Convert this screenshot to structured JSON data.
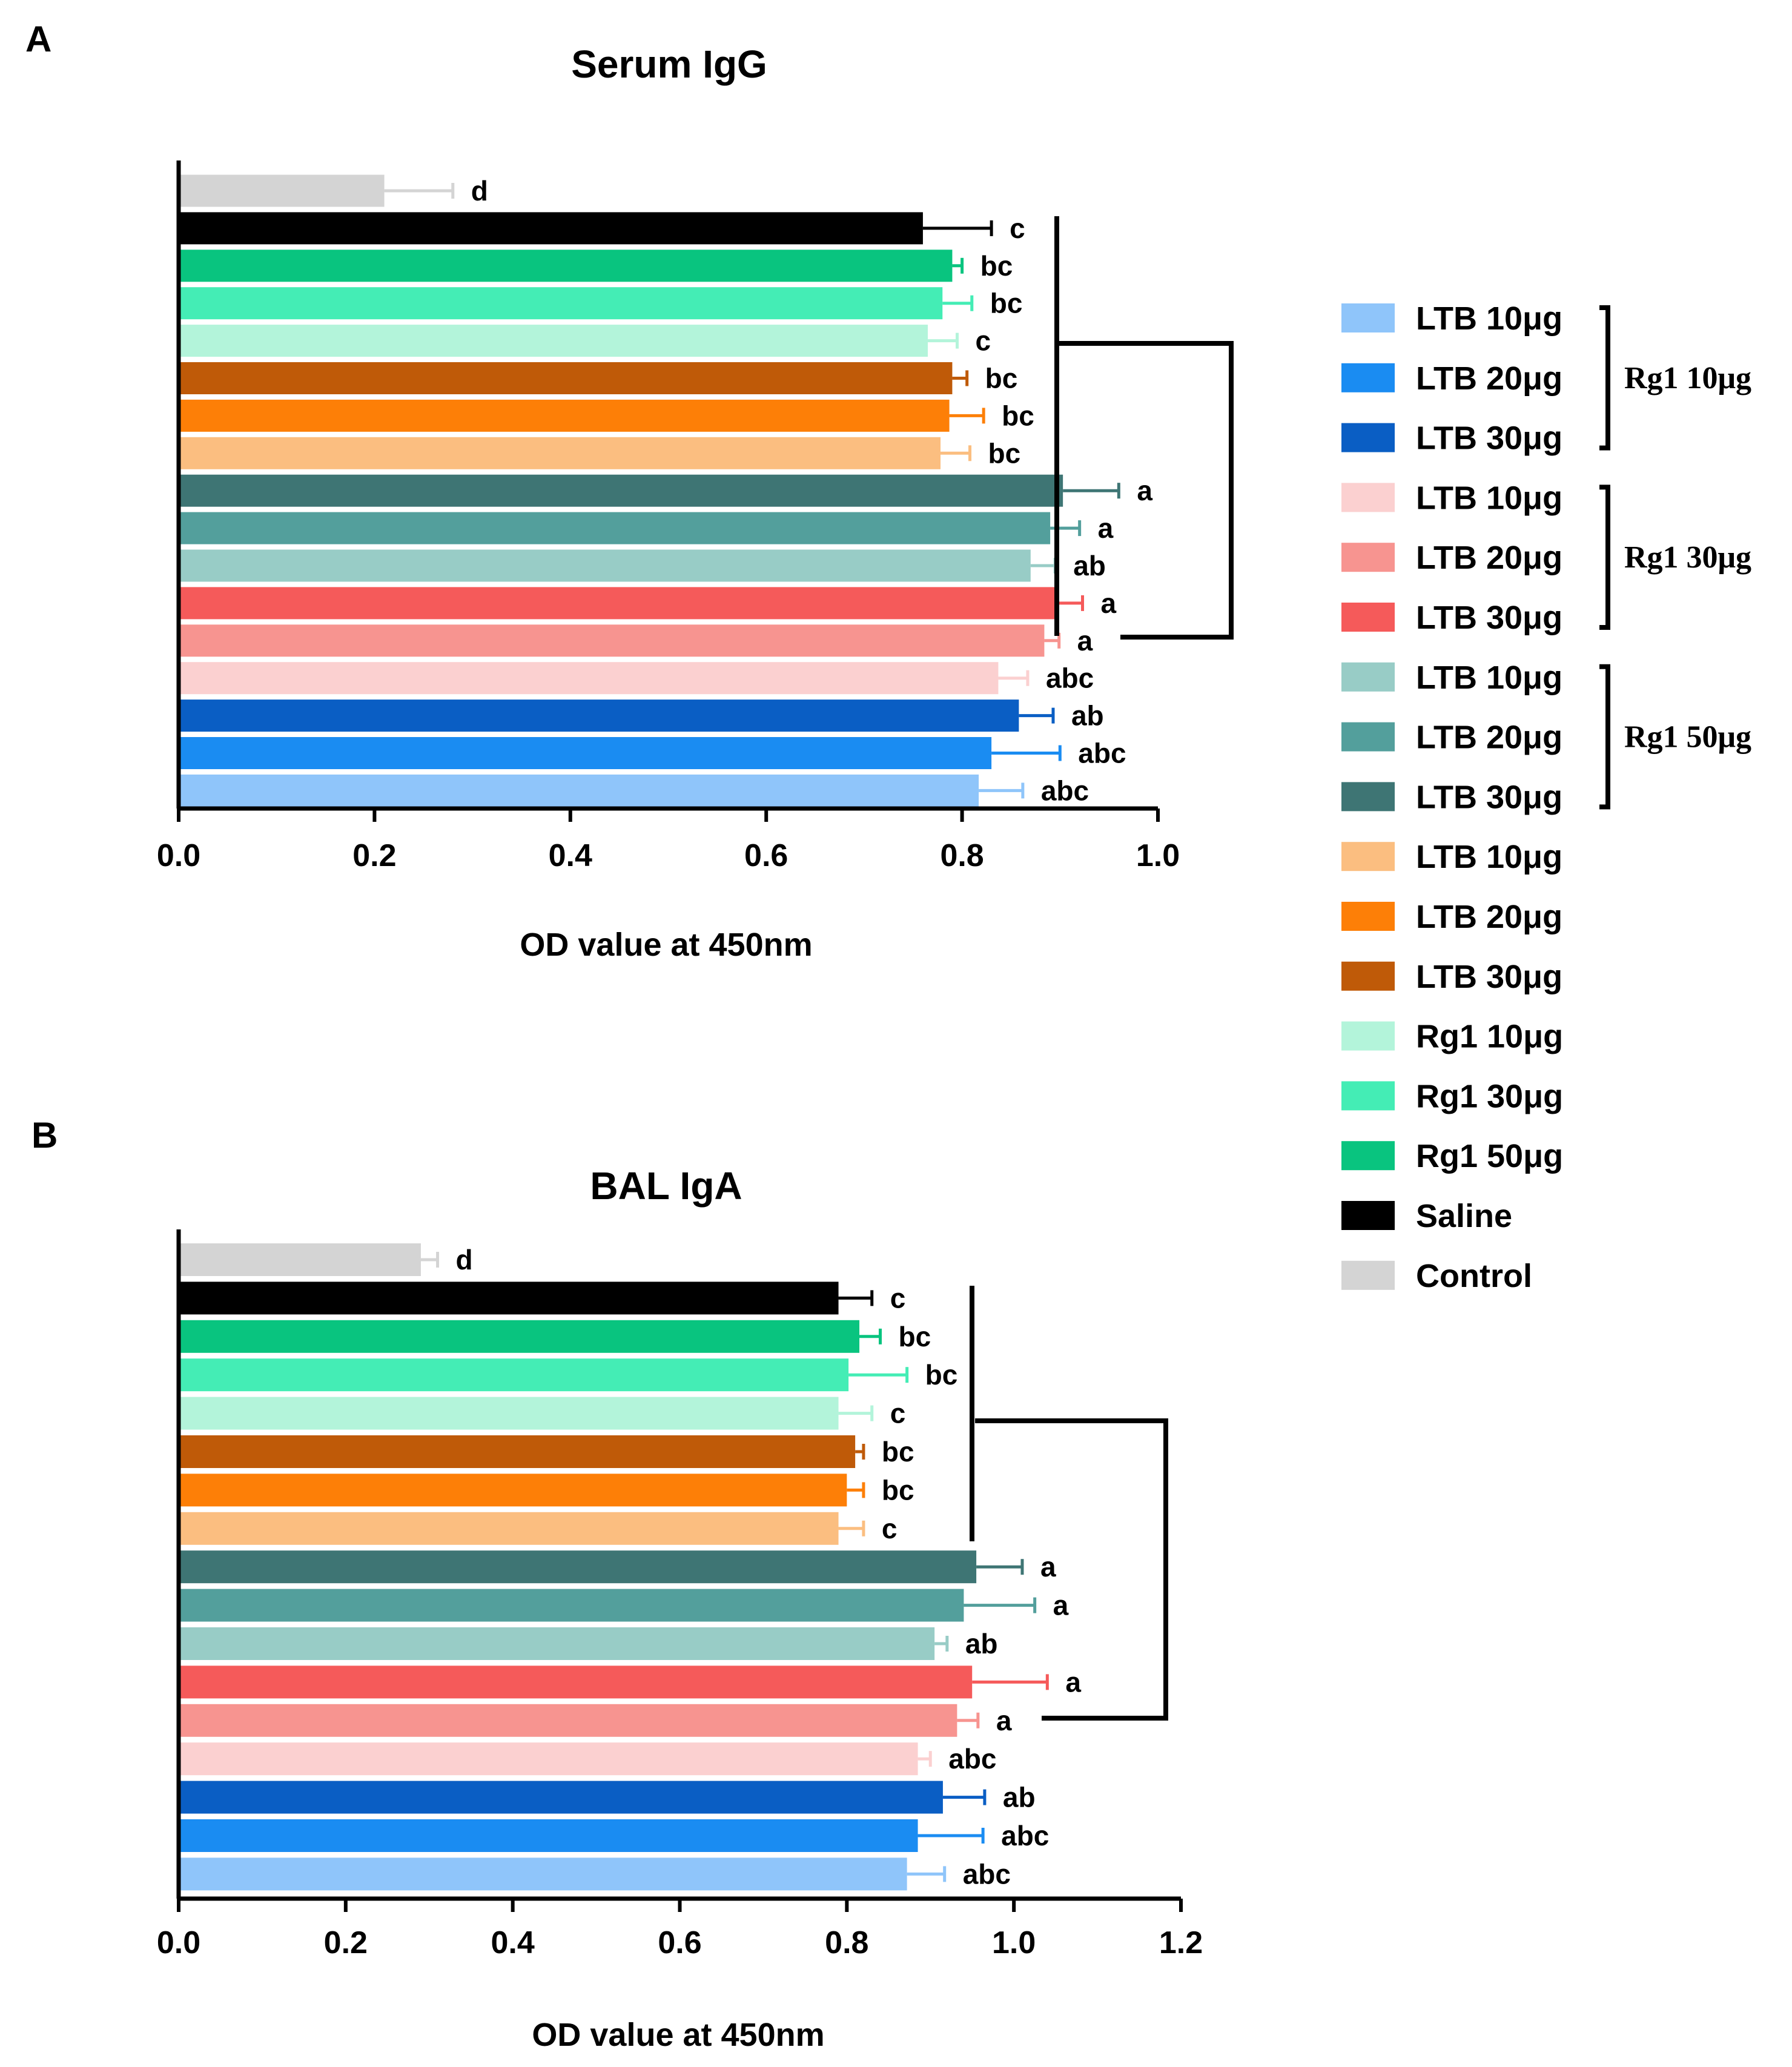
{
  "colors": {
    "ltb10_rg1_10": "#8FC5FA",
    "ltb20_rg1_10": "#1A8CF2",
    "ltb30_rg1_10": "#0A5EC4",
    "ltb10_rg1_30": "#FBD0D0",
    "ltb20_rg1_30": "#F79490",
    "ltb30_rg1_30": "#F55A5A",
    "ltb10_rg1_50": "#98CCC6",
    "ltb20_rg1_50": "#539F9C",
    "ltb30_rg1_50": "#3E7574",
    "ltb10": "#FBBE80",
    "ltb20": "#FD7F07",
    "ltb30": "#BF5A08",
    "rg1_10": "#B3F4DA",
    "rg1_30": "#44EDB5",
    "rg1_50": "#09C47F",
    "saline": "#000000",
    "control": "#D4D4D4"
  },
  "legend": {
    "items": [
      {
        "label": "LTB 10μg",
        "color_key": "ltb10_rg1_10"
      },
      {
        "label": "LTB 20μg",
        "color_key": "ltb20_rg1_10"
      },
      {
        "label": "LTB 30μg",
        "color_key": "ltb30_rg1_10"
      },
      {
        "label": "LTB 10μg",
        "color_key": "ltb10_rg1_30"
      },
      {
        "label": "LTB 20μg",
        "color_key": "ltb20_rg1_30"
      },
      {
        "label": "LTB 30μg",
        "color_key": "ltb30_rg1_30"
      },
      {
        "label": "LTB 10μg",
        "color_key": "ltb10_rg1_50"
      },
      {
        "label": "LTB 20μg",
        "color_key": "ltb20_rg1_50"
      },
      {
        "label": "LTB 30μg",
        "color_key": "ltb30_rg1_50"
      },
      {
        "label": "LTB 10μg",
        "color_key": "ltb10"
      },
      {
        "label": "LTB 20μg",
        "color_key": "ltb20"
      },
      {
        "label": "LTB 30μg",
        "color_key": "ltb30"
      },
      {
        "label": "Rg1 10μg",
        "color_key": "rg1_10"
      },
      {
        "label": "Rg1 30μg",
        "color_key": "rg1_30"
      },
      {
        "label": "Rg1 50μg",
        "color_key": "rg1_50"
      },
      {
        "label": "Saline",
        "color_key": "saline"
      },
      {
        "label": "Control",
        "color_key": "control"
      }
    ],
    "groups": [
      {
        "label": "Rg1 10μg",
        "first": 0,
        "last": 2
      },
      {
        "label": "Rg1 30μg",
        "first": 3,
        "last": 5
      },
      {
        "label": "Rg1 50μg",
        "first": 6,
        "last": 8
      }
    ]
  },
  "chart_data": [
    {
      "panel": "A",
      "type": "bar",
      "orientation": "horizontal",
      "title": "Serum IgG",
      "xlabel": "OD value at 450nm",
      "ylabel": "",
      "xlim": [
        0,
        1.0
      ],
      "xticks": [
        "0.0",
        "0.2",
        "0.4",
        "0.6",
        "0.8",
        "1.0"
      ],
      "xtick_values": [
        0,
        0.2,
        0.4,
        0.6,
        0.8,
        1.0
      ],
      "bars": [
        {
          "group": "Control",
          "color_key": "control",
          "value": 0.21,
          "error": 0.07,
          "sig": "d"
        },
        {
          "group": "Saline",
          "color_key": "saline",
          "value": 0.76,
          "error": 0.07,
          "sig": "c"
        },
        {
          "group": "Rg1 50μg",
          "color_key": "rg1_50",
          "value": 0.79,
          "error": 0.01,
          "sig": "bc"
        },
        {
          "group": "Rg1 30μg",
          "color_key": "rg1_30",
          "value": 0.78,
          "error": 0.03,
          "sig": "bc"
        },
        {
          "group": "Rg1 10μg",
          "color_key": "rg1_10",
          "value": 0.765,
          "error": 0.03,
          "sig": "c"
        },
        {
          "group": "LTB 30μg",
          "color_key": "ltb30",
          "value": 0.79,
          "error": 0.015,
          "sig": "bc"
        },
        {
          "group": "LTB 20μg",
          "color_key": "ltb20",
          "value": 0.787,
          "error": 0.035,
          "sig": "bc"
        },
        {
          "group": "LTB 10μg",
          "color_key": "ltb10",
          "value": 0.778,
          "error": 0.03,
          "sig": "bc"
        },
        {
          "group": "LTB 30μg + Rg1 50μg",
          "color_key": "ltb30_rg1_50",
          "value": 0.903,
          "error": 0.057,
          "sig": "a"
        },
        {
          "group": "LTB 20μg + Rg1 50μg",
          "color_key": "ltb20_rg1_50",
          "value": 0.89,
          "error": 0.03,
          "sig": "a"
        },
        {
          "group": "LTB 10μg + Rg1 50μg",
          "color_key": "ltb10_rg1_50",
          "value": 0.87,
          "error": 0.025,
          "sig": "ab"
        },
        {
          "group": "LTB 30μg + Rg1 30μg",
          "color_key": "ltb30_rg1_30",
          "value": 0.898,
          "error": 0.025,
          "sig": "a"
        },
        {
          "group": "LTB 20μg + Rg1 30μg",
          "color_key": "ltb20_rg1_30",
          "value": 0.884,
          "error": 0.015,
          "sig": "a"
        },
        {
          "group": "LTB 10μg + Rg1 30μg",
          "color_key": "ltb10_rg1_30",
          "value": 0.837,
          "error": 0.03,
          "sig": "abc"
        },
        {
          "group": "LTB 30μg + Rg1 10μg",
          "color_key": "ltb30_rg1_10",
          "value": 0.858,
          "error": 0.035,
          "sig": "ab"
        },
        {
          "group": "LTB 20μg + Rg1 10μg",
          "color_key": "ltb20_rg1_10",
          "value": 0.83,
          "error": 0.07,
          "sig": "abc"
        },
        {
          "group": "LTB 10μg + Rg1 10μg",
          "color_key": "ltb10_rg1_10",
          "value": 0.817,
          "error": 0.045,
          "sig": "abc"
        }
      ]
    },
    {
      "panel": "B",
      "type": "bar",
      "orientation": "horizontal",
      "title": "BAL IgA",
      "xlabel": "OD value at 450nm",
      "ylabel": "",
      "xlim": [
        0,
        1.2
      ],
      "xticks": [
        "0.0",
        "0.2",
        "0.4",
        "0.6",
        "0.8",
        "1.0",
        "1.2"
      ],
      "xtick_values": [
        0,
        0.2,
        0.4,
        0.6,
        0.8,
        1.0,
        1.2
      ],
      "bars": [
        {
          "group": "Control",
          "color_key": "control",
          "value": 0.29,
          "error": 0.02,
          "sig": "d"
        },
        {
          "group": "Saline",
          "color_key": "saline",
          "value": 0.79,
          "error": 0.04,
          "sig": "c"
        },
        {
          "group": "Rg1 50μg",
          "color_key": "rg1_50",
          "value": 0.815,
          "error": 0.025,
          "sig": "bc"
        },
        {
          "group": "Rg1 30μg",
          "color_key": "rg1_30",
          "value": 0.802,
          "error": 0.07,
          "sig": "bc"
        },
        {
          "group": "Rg1 10μg",
          "color_key": "rg1_10",
          "value": 0.79,
          "error": 0.04,
          "sig": "c"
        },
        {
          "group": "LTB 30μg",
          "color_key": "ltb30",
          "value": 0.81,
          "error": 0.01,
          "sig": "bc"
        },
        {
          "group": "LTB 20μg",
          "color_key": "ltb20",
          "value": 0.8,
          "error": 0.02,
          "sig": "bc"
        },
        {
          "group": "LTB 10μg",
          "color_key": "ltb10",
          "value": 0.79,
          "error": 0.03,
          "sig": "c"
        },
        {
          "group": "LTB 30μg + Rg1 50μg",
          "color_key": "ltb30_rg1_50",
          "value": 0.955,
          "error": 0.055,
          "sig": "a"
        },
        {
          "group": "LTB 20μg + Rg1 50μg",
          "color_key": "ltb20_rg1_50",
          "value": 0.94,
          "error": 0.085,
          "sig": "a"
        },
        {
          "group": "LTB 10μg + Rg1 50μg",
          "color_key": "ltb10_rg1_50",
          "value": 0.905,
          "error": 0.015,
          "sig": "ab"
        },
        {
          "group": "LTB 30μg + Rg1 30μg",
          "color_key": "ltb30_rg1_30",
          "value": 0.95,
          "error": 0.09,
          "sig": "a"
        },
        {
          "group": "LTB 20μg + Rg1 30μg",
          "color_key": "ltb20_rg1_30",
          "value": 0.932,
          "error": 0.025,
          "sig": "a"
        },
        {
          "group": "LTB 10μg + Rg1 30μg",
          "color_key": "ltb10_rg1_30",
          "value": 0.885,
          "error": 0.015,
          "sig": "abc"
        },
        {
          "group": "LTB 30μg + Rg1 10μg",
          "color_key": "ltb30_rg1_10",
          "value": 0.915,
          "error": 0.05,
          "sig": "ab"
        },
        {
          "group": "LTB 20μg + Rg1 10μg",
          "color_key": "ltb20_rg1_10",
          "value": 0.885,
          "error": 0.078,
          "sig": "abc"
        },
        {
          "group": "LTB 10μg + Rg1 10μg",
          "color_key": "ltb10_rg1_10",
          "value": 0.872,
          "error": 0.045,
          "sig": "abc"
        }
      ]
    }
  ]
}
